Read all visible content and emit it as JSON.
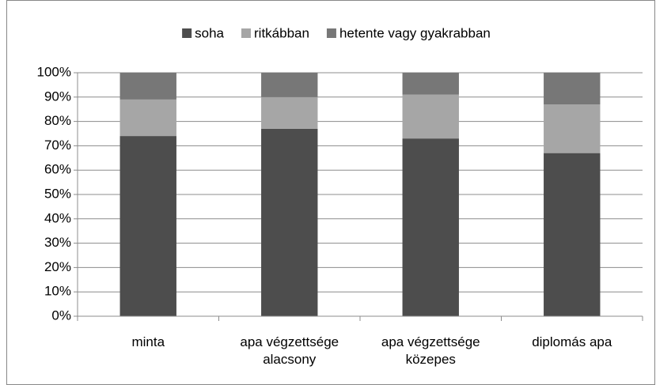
{
  "chart_data": {
    "type": "stacked_bar",
    "categories": [
      "minta",
      "apa végzettsége alacsony",
      "apa végzettsége közepes",
      "diplomás apa"
    ],
    "series": [
      {
        "name": "soha",
        "color": "#4d4d4d",
        "values": [
          74,
          77,
          73,
          67
        ]
      },
      {
        "name": "ritkábban",
        "color": "#a6a6a6",
        "values": [
          15,
          13,
          18,
          20
        ]
      },
      {
        "name": "hetente vagy gyakrabban",
        "color": "#777777",
        "values": [
          11,
          10,
          9,
          13
        ]
      }
    ],
    "ylim": [
      0,
      100
    ],
    "yticks": [
      {
        "value": 0,
        "label": "0%"
      },
      {
        "value": 10,
        "label": "10%"
      },
      {
        "value": 20,
        "label": "20%"
      },
      {
        "value": 30,
        "label": "30%"
      },
      {
        "value": 40,
        "label": "40%"
      },
      {
        "value": 50,
        "label": "50%"
      },
      {
        "value": 60,
        "label": "60%"
      },
      {
        "value": 70,
        "label": "70%"
      },
      {
        "value": 80,
        "label": "80%"
      },
      {
        "value": 90,
        "label": "90%"
      },
      {
        "value": 100,
        "label": "100%"
      }
    ],
    "grid": true,
    "legend": "top"
  }
}
